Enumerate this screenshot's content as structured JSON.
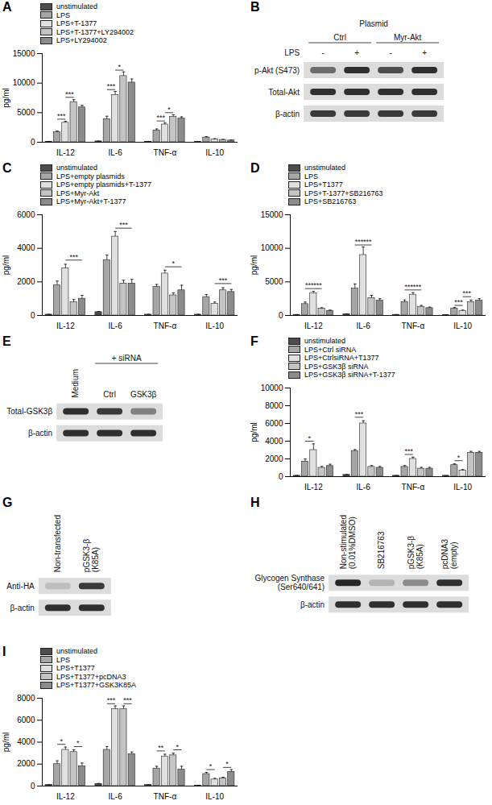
{
  "chart_data": [
    {
      "type": "bar",
      "title": "A",
      "ylabel": "pg/ml",
      "legend": "top-left",
      "categories": [
        "IL-12",
        "IL-6",
        "TNF-α",
        "IL-10"
      ],
      "ylim": [
        0,
        15000
      ],
      "yticks": [
        0,
        5000,
        10000,
        15000
      ],
      "series": [
        {
          "name": "unstimulated",
          "color": "#4d4d4d",
          "values": [
            100,
            150,
            100,
            50
          ],
          "errors": [
            30,
            40,
            30,
            20
          ]
        },
        {
          "name": "LPS",
          "color": "#a6a6a6",
          "values": [
            1700,
            3900,
            2000,
            800
          ],
          "errors": [
            200,
            500,
            250,
            150
          ]
        },
        {
          "name": "LPS+T-1377",
          "color": "#e0e0e0",
          "values": [
            3300,
            8000,
            3000,
            500
          ],
          "errors": [
            250,
            600,
            300,
            100
          ]
        },
        {
          "name": "LPS+T-1377+LY294002",
          "color": "#c4c4c4",
          "values": [
            6800,
            11200,
            4300,
            400
          ],
          "errors": [
            400,
            700,
            350,
            80
          ]
        },
        {
          "name": "LPS+LY294002",
          "color": "#8c8c8c",
          "values": [
            5900,
            10100,
            4000,
            300
          ],
          "errors": [
            350,
            600,
            300,
            60
          ]
        }
      ],
      "annotations": [
        {
          "text": "***",
          "category": "IL-12",
          "between": [
            "LPS",
            "LPS+T-1377"
          ],
          "y": 3900
        },
        {
          "text": "***",
          "category": "IL-12",
          "between": [
            "LPS+T-1377",
            "LPS+T-1377+LY294002"
          ],
          "y": 7600
        },
        {
          "text": "***",
          "category": "IL-6",
          "between": [
            "LPS",
            "LPS+T-1377"
          ],
          "y": 8900
        },
        {
          "text": "*",
          "category": "IL-6",
          "between": [
            "LPS+T-1377",
            "LPS+T-1377+LY294002"
          ],
          "y": 12200
        },
        {
          "text": "***",
          "category": "TNF-α",
          "between": [
            "LPS",
            "LPS+T-1377"
          ],
          "y": 3600
        },
        {
          "text": "*",
          "category": "TNF-α",
          "between": [
            "LPS+T-1377",
            "LPS+T-1377+LY294002"
          ],
          "y": 5000
        }
      ]
    },
    {
      "type": "bar",
      "title": "C",
      "ylabel": "pg/ml",
      "legend": "top-left",
      "categories": [
        "IL-12",
        "IL-6",
        "TNF-α",
        "IL-10"
      ],
      "ylim": [
        0,
        6000
      ],
      "yticks": [
        0,
        2000,
        4000,
        6000
      ],
      "series": [
        {
          "name": "unstimulated",
          "color": "#4d4d4d",
          "values": [
            50,
            200,
            50,
            50
          ],
          "errors": [
            20,
            40,
            20,
            20
          ]
        },
        {
          "name": "LPS+empty plasmids",
          "color": "#a6a6a6",
          "values": [
            1800,
            3300,
            1700,
            1100
          ],
          "errors": [
            250,
            300,
            150,
            150
          ]
        },
        {
          "name": "LPS+empty plasmids+T-1377",
          "color": "#e0e0e0",
          "values": [
            2800,
            4700,
            2500,
            700
          ],
          "errors": [
            250,
            300,
            200,
            100
          ]
        },
        {
          "name": "LPS+Myr-Akt",
          "color": "#c4c4c4",
          "values": [
            800,
            1900,
            1200,
            1500
          ],
          "errors": [
            150,
            200,
            150,
            150
          ]
        },
        {
          "name": "LPS+Myr-Akt+T-1377",
          "color": "#8c8c8c",
          "values": [
            1000,
            1900,
            1500,
            1400
          ],
          "errors": [
            200,
            250,
            300,
            150
          ]
        }
      ],
      "annotations": [
        {
          "text": "***",
          "category": "IL-12",
          "between": [
            "LPS+empty plasmids+T-1377",
            "LPS+Myr-Akt+T-1377"
          ],
          "y": 3300
        },
        {
          "text": "***",
          "category": "IL-6",
          "between": [
            "LPS+empty plasmids+T-1377",
            "LPS+Myr-Akt+T-1377"
          ],
          "y": 5200
        },
        {
          "text": "*",
          "category": "TNF-α",
          "between": [
            "LPS+empty plasmids+T-1377",
            "LPS+Myr-Akt+T-1377"
          ],
          "y": 2900
        },
        {
          "text": "***",
          "category": "IL-10",
          "between": [
            "LPS+empty plasmids+T-1377",
            "LPS+Myr-Akt+T-1377"
          ],
          "y": 1900
        }
      ]
    },
    {
      "type": "bar",
      "title": "D",
      "ylabel": "pg/ml",
      "legend": "top-left",
      "categories": [
        "IL-12",
        "IL-6",
        "TNF-α",
        "IL-10"
      ],
      "ylim": [
        0,
        15000
      ],
      "yticks": [
        0,
        5000,
        10000,
        15000
      ],
      "series": [
        {
          "name": "unstimulated",
          "color": "#4d4d4d",
          "values": [
            100,
            200,
            100,
            50
          ],
          "errors": [
            30,
            40,
            30,
            20
          ]
        },
        {
          "name": "LPS",
          "color": "#a6a6a6",
          "values": [
            1700,
            4000,
            2000,
            1000
          ],
          "errors": [
            300,
            700,
            300,
            200
          ]
        },
        {
          "name": "LPS+T1377",
          "color": "#e0e0e0",
          "values": [
            3300,
            9000,
            3100,
            700
          ],
          "errors": [
            300,
            1200,
            300,
            100
          ]
        },
        {
          "name": "LPS+T-1377+SB216763",
          "color": "#c4c4c4",
          "values": [
            1000,
            2600,
            1300,
            2000
          ],
          "errors": [
            150,
            400,
            200,
            300
          ]
        },
        {
          "name": "LPS+SB216763",
          "color": "#8c8c8c",
          "values": [
            700,
            2200,
            1100,
            2200
          ],
          "errors": [
            100,
            300,
            150,
            300
          ]
        }
      ],
      "annotations": [
        {
          "text": "***",
          "category": "IL-12",
          "between": [
            "LPS",
            "LPS+T1377"
          ],
          "y": 4000
        },
        {
          "text": "***",
          "category": "IL-12",
          "between": [
            "LPS+T1377",
            "LPS+T-1377+SB216763"
          ],
          "y": 4000
        },
        {
          "text": "***",
          "category": "IL-6",
          "between": [
            "LPS",
            "LPS+T1377"
          ],
          "y": 10500
        },
        {
          "text": "***",
          "category": "IL-6",
          "between": [
            "LPS+T1377",
            "LPS+T-1377+SB216763"
          ],
          "y": 10500
        },
        {
          "text": "***",
          "category": "TNF-α",
          "between": [
            "LPS",
            "LPS+T1377"
          ],
          "y": 3800
        },
        {
          "text": "***",
          "category": "TNF-α",
          "between": [
            "LPS+T1377",
            "LPS+T-1377+SB216763"
          ],
          "y": 3800
        },
        {
          "text": "***",
          "category": "IL-10",
          "between": [
            "LPS",
            "LPS+T1377"
          ],
          "y": 1500
        },
        {
          "text": "***",
          "category": "IL-10",
          "between": [
            "LPS+T1377",
            "LPS+T-1377+SB216763"
          ],
          "y": 2800
        }
      ]
    },
    {
      "type": "bar",
      "title": "F",
      "ylabel": "pg/ml",
      "legend": "top-left",
      "categories": [
        "IL-12",
        "IL-6",
        "TNF-α",
        "IL-10"
      ],
      "ylim": [
        0,
        10000
      ],
      "yticks": [
        0,
        2000,
        4000,
        6000,
        8000,
        10000
      ],
      "series": [
        {
          "name": "unstimulated",
          "color": "#4d4d4d",
          "values": [
            100,
            200,
            100,
            100
          ],
          "errors": [
            30,
            40,
            30,
            20
          ]
        },
        {
          "name": "LPS+Ctrl siRNA",
          "color": "#a6a6a6",
          "values": [
            1700,
            2900,
            1100,
            1300
          ],
          "errors": [
            300,
            150,
            150,
            150
          ]
        },
        {
          "name": "LPS+CtrlsiRNA+T1377",
          "color": "#e0e0e0",
          "values": [
            3000,
            6000,
            2000,
            700
          ],
          "errors": [
            700,
            300,
            200,
            100
          ]
        },
        {
          "name": "LPS+GSK3β siRNA",
          "color": "#c4c4c4",
          "values": [
            1000,
            1100,
            900,
            2700
          ],
          "errors": [
            150,
            150,
            150,
            150
          ]
        },
        {
          "name": "LPS+GSK3β siRNA+T-1377",
          "color": "#8c8c8c",
          "values": [
            1200,
            1000,
            900,
            2700
          ],
          "errors": [
            200,
            150,
            150,
            150
          ]
        }
      ],
      "annotations": [
        {
          "text": "*",
          "category": "IL-12",
          "between": [
            "LPS+Ctrl siRNA",
            "LPS+CtrlsiRNA+T1377"
          ],
          "y": 4000
        },
        {
          "text": "***",
          "category": "IL-6",
          "between": [
            "LPS+Ctrl siRNA",
            "LPS+CtrlsiRNA+T1377"
          ],
          "y": 6700
        },
        {
          "text": "***",
          "category": "TNF-α",
          "between": [
            "LPS+Ctrl siRNA",
            "LPS+CtrlsiRNA+T1377"
          ],
          "y": 2500
        },
        {
          "text": "*",
          "category": "IL-10",
          "between": [
            "LPS+Ctrl siRNA",
            "LPS+CtrlsiRNA+T1377"
          ],
          "y": 1800
        }
      ]
    },
    {
      "type": "bar",
      "title": "I",
      "ylabel": "pg/ml",
      "legend": "top-left",
      "categories": [
        "IL-12",
        "IL-6",
        "TNF-α",
        "IL-10"
      ],
      "ylim": [
        0,
        8000
      ],
      "yticks": [
        0,
        2000,
        4000,
        6000,
        8000
      ],
      "series": [
        {
          "name": "unstimulated",
          "color": "#4d4d4d",
          "values": [
            100,
            200,
            100,
            50
          ],
          "errors": [
            30,
            40,
            30,
            20
          ]
        },
        {
          "name": "LPS",
          "color": "#a6a6a6",
          "values": [
            2000,
            3300,
            1600,
            1100
          ],
          "errors": [
            300,
            300,
            200,
            150
          ]
        },
        {
          "name": "LPS+T1377",
          "color": "#e0e0e0",
          "values": [
            3300,
            7000,
            2700,
            600
          ],
          "errors": [
            250,
            300,
            200,
            100
          ]
        },
        {
          "name": "LPS+T1377+pcDNA3",
          "color": "#c4c4c4",
          "values": [
            3100,
            7000,
            2800,
            700
          ],
          "errors": [
            200,
            300,
            200,
            100
          ]
        },
        {
          "name": "LPS+T1377+GSK3K85A",
          "color": "#8c8c8c",
          "values": [
            1800,
            2900,
            1500,
            1300
          ],
          "errors": [
            300,
            200,
            300,
            200
          ]
        }
      ],
      "annotations": [
        {
          "text": "*",
          "category": "IL-12",
          "between": [
            "LPS",
            "LPS+T1377"
          ],
          "y": 3800
        },
        {
          "text": "*",
          "category": "IL-12",
          "between": [
            "LPS+T1377+pcDNA3",
            "LPS+T1377+GSK3K85A"
          ],
          "y": 3600
        },
        {
          "text": "***",
          "category": "IL-6",
          "between": [
            "LPS",
            "LPS+T1377"
          ],
          "y": 7500
        },
        {
          "text": "***",
          "category": "IL-6",
          "between": [
            "LPS+T1377+pcDNA3",
            "LPS+T1377+GSK3K85A"
          ],
          "y": 7500
        },
        {
          "text": "**",
          "category": "TNF-α",
          "between": [
            "LPS",
            "LPS+T1377"
          ],
          "y": 3200
        },
        {
          "text": "*",
          "category": "TNF-α",
          "between": [
            "LPS+T1377+pcDNA3",
            "LPS+T1377+GSK3K85A"
          ],
          "y": 3300
        },
        {
          "text": "*",
          "category": "IL-10",
          "between": [
            "LPS",
            "LPS+T1377"
          ],
          "y": 1500
        },
        {
          "text": "*",
          "category": "IL-10",
          "between": [
            "LPS+T1377+pcDNA3",
            "LPS+T1377+GSK3K85A"
          ],
          "y": 1700
        }
      ]
    }
  ],
  "blots": [
    {
      "title": "B",
      "header": "Plasmid",
      "lane_row_label": "LPS",
      "lanes": [
        {
          "label": "-",
          "group": "Ctrl"
        },
        {
          "label": "+",
          "group": "Ctrl"
        },
        {
          "label": "-",
          "group": "Myr-Akt"
        },
        {
          "label": "+",
          "group": "Myr-Akt"
        }
      ],
      "rows": [
        {
          "label": "p-Akt (S473)",
          "intensity": [
            0.55,
            0.85,
            0.7,
            0.85
          ]
        },
        {
          "label": "Total-Akt",
          "intensity": [
            0.85,
            0.85,
            0.85,
            0.85
          ]
        },
        {
          "label": "β-actin",
          "intensity": [
            0.8,
            0.8,
            0.8,
            0.8
          ]
        }
      ]
    },
    {
      "title": "E",
      "lanes": [
        {
          "label": "Medium"
        },
        {
          "label": "Ctrl",
          "group": "+ siRNA"
        },
        {
          "label": "GSK3β",
          "group": "+ siRNA"
        }
      ],
      "rows": [
        {
          "label": "Total-GSK3β",
          "intensity": [
            0.85,
            0.8,
            0.45
          ]
        },
        {
          "label": "β-actin",
          "intensity": [
            0.85,
            0.85,
            0.85
          ]
        }
      ]
    },
    {
      "title": "G",
      "lanes": [
        {
          "label": "Non-transfected"
        },
        {
          "label": "pGSK3-β (K85A)"
        }
      ],
      "rows": [
        {
          "label": "Anti-HA",
          "intensity": [
            0.15,
            0.8
          ]
        },
        {
          "label": "β-actin",
          "intensity": [
            0.85,
            0.85
          ]
        }
      ]
    },
    {
      "title": "H",
      "lanes": [
        {
          "label": "Non-stimulated (0.01%DMSO)"
        },
        {
          "label": "SB216763"
        },
        {
          "label": "pGSK3-β (K85A)"
        },
        {
          "label": "pcDNA3 (empty)"
        }
      ],
      "rows": [
        {
          "label": "Glycogen Synthase (Ser640/641)",
          "intensity": [
            0.9,
            0.2,
            0.4,
            0.85
          ]
        },
        {
          "label": "β-actin",
          "intensity": [
            0.85,
            0.85,
            0.85,
            0.85
          ]
        }
      ]
    }
  ]
}
